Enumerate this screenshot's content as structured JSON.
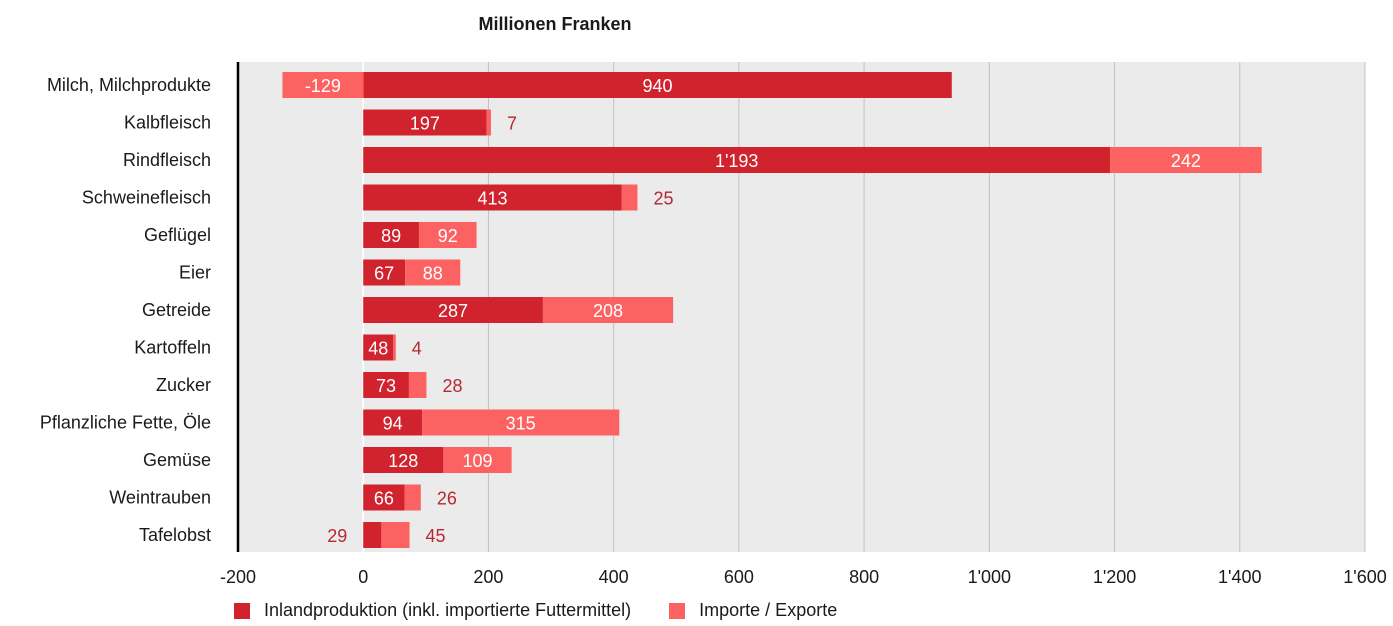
{
  "chart_data": {
    "type": "bar",
    "orientation": "horizontal",
    "stacked": true,
    "title": "Millionen Franken",
    "categories": [
      "Milch, Milchprodukte",
      "Kalbfleisch",
      "Rindfleisch",
      "Schweinefleisch",
      "Geflügel",
      "Eier",
      "Getreide",
      "Kartoffeln",
      "Zucker",
      "Pflanzliche Fette, Öle",
      "Gemüse",
      "Weintrauben",
      "Tafelobst"
    ],
    "series": [
      {
        "name": "Inlandproduktion (inkl. importierte Futtermittel)",
        "color": "#d0232d",
        "values": [
          940,
          197,
          1193,
          413,
          89,
          67,
          287,
          48,
          73,
          94,
          128,
          66,
          29
        ],
        "labels": [
          "940",
          "197",
          "1'193",
          "413",
          "89",
          "67",
          "287",
          "48",
          "73",
          "94",
          "128",
          "66",
          "29"
        ]
      },
      {
        "name": "Importe / Exporte",
        "color": "#fd6262",
        "values": [
          -129,
          7,
          242,
          25,
          92,
          88,
          208,
          4,
          28,
          315,
          109,
          26,
          45
        ],
        "labels": [
          "-129",
          "7",
          "242",
          "25",
          "92",
          "88",
          "208",
          "4",
          "28",
          "315",
          "109",
          "26",
          "45"
        ]
      }
    ],
    "xlim": [
      -200,
      1600
    ],
    "xticks": [
      -200,
      0,
      200,
      400,
      600,
      800,
      1000,
      1200,
      1400,
      1600
    ],
    "xtick_labels": [
      "-200",
      "0",
      "200",
      "400",
      "600",
      "800",
      "1'000",
      "1'200",
      "1'400",
      "1'600"
    ],
    "grid": true,
    "legend_position": "bottom",
    "plot_background": "#ebebeb",
    "label_color_inside": "#ffffff",
    "label_color_outside": "#b52a30"
  }
}
